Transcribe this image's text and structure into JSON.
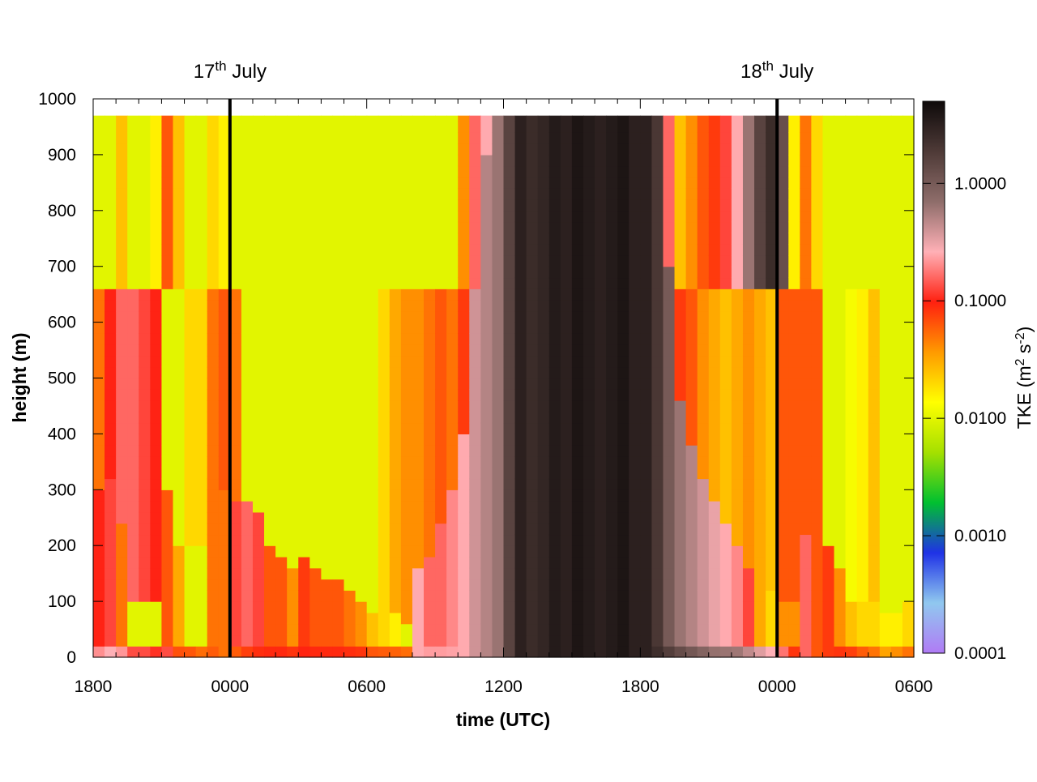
{
  "chart_data": {
    "type": "heatmap",
    "title": "",
    "xlabel": "time (UTC)",
    "ylabel": "height (m)",
    "colorbar_label": "TKE (m² s⁻²)",
    "colorbar_label_parts": {
      "base": "TKE (m",
      "exp1": "2",
      "mid": " s",
      "exp2": "-2",
      "end": ")"
    },
    "x_ticks": [
      "1800",
      "0000",
      "0600",
      "1200",
      "1800",
      "0000",
      "0600"
    ],
    "x_range_hours_from_start": [
      0,
      36
    ],
    "y_ticks": [
      0,
      100,
      200,
      300,
      400,
      500,
      600,
      700,
      800,
      900,
      1000
    ],
    "ylim": [
      0,
      1000
    ],
    "data_top_height": 970,
    "colorbar_scale": "log",
    "colorbar_range": [
      0.0001,
      5.0
    ],
    "colorbar_ticks": [
      "1.0000",
      "0.1000",
      "0.0100",
      "0.0010",
      "0.0001"
    ],
    "colormap": [
      "#b07bf5",
      "#90c8ef",
      "#1f32e6",
      "#00c030",
      "#a5e000",
      "#ffff00",
      "#ff9a00",
      "#ff2010",
      "#ffb0b6",
      "#8e6d6a",
      "#4e3a37",
      "#0e0a0a"
    ],
    "date_markers": [
      {
        "hour": 6,
        "day": "17",
        "suffix": "th",
        "month": " July"
      },
      {
        "hour": 30,
        "day": "18",
        "suffix": "th",
        "month": " July"
      }
    ],
    "grid": false,
    "column_hours": [
      "18:00",
      "18:30",
      "19:00",
      "19:30",
      "20:00",
      "20:30",
      "21:00",
      "21:30",
      "22:00",
      "22:30",
      "23:00",
      "23:30",
      "00:00",
      "00:30",
      "01:00",
      "01:30",
      "02:00",
      "02:30",
      "03:00",
      "03:30",
      "04:00",
      "04:30",
      "05:00",
      "05:30",
      "06:00",
      "06:30",
      "07:00",
      "07:30",
      "08:00",
      "08:30",
      "09:00",
      "09:30",
      "10:00",
      "10:30",
      "11:00",
      "11:30",
      "12:00",
      "12:30",
      "13:00",
      "13:30",
      "14:00",
      "14:30",
      "15:00",
      "15:30",
      "16:00",
      "16:30",
      "17:00",
      "17:30",
      "18:00",
      "18:30",
      "19:00",
      "19:30",
      "20:00",
      "20:30",
      "21:00",
      "21:30",
      "22:00",
      "22:30",
      "23:00",
      "23:30",
      "00:00",
      "00:30",
      "01:00",
      "01:30",
      "02:00",
      "02:30",
      "03:00",
      "03:30",
      "04:00",
      "04:30",
      "05:00",
      "05:30"
    ],
    "column_profiles_log10_TKE": [
      {
        "surf": -0.6,
        "low": -1.0,
        "low_top": 300,
        "mid": -1.3,
        "up": -2.0
      },
      {
        "surf": -0.5,
        "low": -0.9,
        "low_top": 320,
        "mid": -1.0,
        "up": -2.0
      },
      {
        "surf": -0.5,
        "low": -1.3,
        "low_top": 240,
        "mid": -0.8,
        "up": -1.6
      },
      {
        "surf": -0.6,
        "low": -2.0,
        "low_top": 100,
        "mid": -0.8,
        "up": -2.0
      },
      {
        "surf": -0.6,
        "low": -2.0,
        "low_top": 100,
        "mid": -0.9,
        "up": -2.0
      },
      {
        "surf": -0.7,
        "low": -2.0,
        "low_top": 90,
        "mid": -1.0,
        "up": -1.8
      },
      {
        "surf": -0.8,
        "low": -1.2,
        "low_top": 300,
        "mid": -2.0,
        "up": -1.2
      },
      {
        "surf": -1.1,
        "low": -1.5,
        "low_top": 200,
        "mid": -2.0,
        "up": -1.6
      },
      {
        "surf": -1.0,
        "low": -2.0,
        "low_top": 200,
        "mid": -1.7,
        "up": -2.0
      },
      {
        "surf": -1.1,
        "low": -2.0,
        "low_top": 200,
        "mid": -1.7,
        "up": -2.0
      },
      {
        "surf": -1.2,
        "low": -1.3,
        "low_top": 300,
        "mid": -1.3,
        "up": -1.7
      },
      {
        "surf": -1.3,
        "low": -1.3,
        "low_top": 300,
        "mid": -1.2,
        "up": -1.8
      },
      {
        "surf": -1.3,
        "low": -0.9,
        "low_top": 280,
        "mid": -1.3,
        "up": -2.0
      },
      {
        "surf": -1.2,
        "low": -0.8,
        "low_top": 280,
        "mid": -2.0,
        "up": -2.0
      },
      {
        "surf": -1.1,
        "low": -0.9,
        "low_top": 260,
        "mid": -2.0,
        "up": -2.0
      },
      {
        "surf": -1.0,
        "low": -1.2,
        "low_top": 200,
        "mid": -2.0,
        "up": -2.0
      },
      {
        "surf": -1.0,
        "low": -1.2,
        "low_top": 180,
        "mid": -2.0,
        "up": -2.0
      },
      {
        "surf": -1.0,
        "low": -1.4,
        "low_top": 160,
        "mid": -2.0,
        "up": -2.0
      },
      {
        "surf": -1.0,
        "low": -1.1,
        "low_top": 180,
        "mid": -2.0,
        "up": -2.0
      },
      {
        "surf": -1.0,
        "low": -1.2,
        "low_top": 160,
        "mid": -2.0,
        "up": -2.0
      },
      {
        "surf": -1.0,
        "low": -1.2,
        "low_top": 140,
        "mid": -2.0,
        "up": -2.0
      },
      {
        "surf": -1.0,
        "low": -1.2,
        "low_top": 130,
        "mid": -2.0,
        "up": -2.0
      },
      {
        "surf": -1.0,
        "low": -1.3,
        "low_top": 120,
        "mid": -2.0,
        "up": -2.0
      },
      {
        "surf": -1.0,
        "low": -1.4,
        "low_top": 100,
        "mid": -2.0,
        "up": -2.0
      },
      {
        "surf": -1.1,
        "low": -1.6,
        "low_top": 80,
        "mid": -2.0,
        "up": -2.0
      },
      {
        "surf": -1.1,
        "low": -1.7,
        "low_top": 80,
        "mid": -1.7,
        "up": -2.0
      },
      {
        "surf": -1.1,
        "low": -1.8,
        "low_top": 80,
        "mid": -1.5,
        "up": -2.0
      },
      {
        "surf": -1.1,
        "low": -2.0,
        "low_top": 60,
        "mid": -1.4,
        "up": -2.0
      },
      {
        "surf": -0.6,
        "low": -0.6,
        "low_top": 150,
        "mid": -1.4,
        "up": -2.0
      },
      {
        "surf": -0.6,
        "low": -0.8,
        "low_top": 170,
        "mid": -1.3,
        "up": -2.0
      },
      {
        "surf": -0.6,
        "low": -0.8,
        "low_top": 240,
        "mid": -1.2,
        "up": -2.0
      },
      {
        "surf": -0.6,
        "low": -0.7,
        "low_top": 300,
        "mid": -1.3,
        "up": -2.0
      },
      {
        "surf": -0.6,
        "low": -0.6,
        "low_top": 400,
        "mid": -1.1,
        "up": -1.4
      },
      {
        "surf": -0.4,
        "low": -0.4,
        "low_top": 600,
        "mid": -0.4,
        "up": -0.8
      },
      {
        "surf": -0.3,
        "low": -0.3,
        "low_top": 900,
        "mid": -0.3,
        "up": -0.6
      },
      {
        "surf": -0.2,
        "low": -0.2,
        "low_top": 990,
        "mid": -0.2,
        "up": -0.2
      },
      {
        "surf": 0.2,
        "low": 0.2,
        "low_top": 990,
        "mid": 0.2,
        "up": 0.2
      },
      {
        "surf": 0.5,
        "low": 0.5,
        "low_top": 990,
        "mid": 0.5,
        "up": 0.5
      },
      {
        "surf": 0.4,
        "low": 0.4,
        "low_top": 990,
        "mid": 0.4,
        "up": 0.4
      },
      {
        "surf": 0.45,
        "low": 0.45,
        "low_top": 990,
        "mid": 0.45,
        "up": 0.45
      },
      {
        "surf": 0.55,
        "low": 0.55,
        "low_top": 990,
        "mid": 0.55,
        "up": 0.55
      },
      {
        "surf": 0.5,
        "low": 0.5,
        "low_top": 990,
        "mid": 0.5,
        "up": 0.5
      },
      {
        "surf": 0.6,
        "low": 0.6,
        "low_top": 990,
        "mid": 0.6,
        "up": 0.6
      },
      {
        "surf": 0.55,
        "low": 0.55,
        "low_top": 990,
        "mid": 0.55,
        "up": 0.55
      },
      {
        "surf": 0.5,
        "low": 0.5,
        "low_top": 990,
        "mid": 0.5,
        "up": 0.5
      },
      {
        "surf": 0.55,
        "low": 0.55,
        "low_top": 990,
        "mid": 0.55,
        "up": 0.55
      },
      {
        "surf": 0.6,
        "low": 0.6,
        "low_top": 990,
        "mid": 0.6,
        "up": 0.6
      },
      {
        "surf": 0.5,
        "low": 0.5,
        "low_top": 990,
        "mid": 0.5,
        "up": 0.5
      },
      {
        "surf": 0.5,
        "low": 0.5,
        "low_top": 990,
        "mid": 0.5,
        "up": 0.5
      },
      {
        "surf": 0.4,
        "low": 0.3,
        "low_top": 990,
        "mid": -0.2,
        "up": -0.5
      },
      {
        "surf": 0.3,
        "low": 0.0,
        "low_top": 700,
        "mid": -0.4,
        "up": -0.8
      },
      {
        "surf": 0.2,
        "low": -0.2,
        "low_top": 450,
        "mid": -1.1,
        "up": -1.6
      },
      {
        "surf": 0.1,
        "low": -0.3,
        "low_top": 380,
        "mid": -1.2,
        "up": -1.4
      },
      {
        "surf": 0.0,
        "low": -0.4,
        "low_top": 320,
        "mid": -1.4,
        "up": -1.2
      },
      {
        "surf": -0.1,
        "low": -0.5,
        "low_top": 270,
        "mid": -1.5,
        "up": -1.1
      },
      {
        "surf": -0.1,
        "low": -0.6,
        "low_top": 230,
        "mid": -1.6,
        "up": -0.9
      },
      {
        "surf": -0.1,
        "low": -0.7,
        "low_top": 200,
        "mid": -1.5,
        "up": -0.6
      },
      {
        "surf": -0.2,
        "low": -0.9,
        "low_top": 160,
        "mid": -1.4,
        "up": -0.2
      },
      {
        "surf": -0.2,
        "low": -1.5,
        "low_top": 130,
        "mid": -1.5,
        "up": 0.2
      },
      {
        "surf": -0.3,
        "low": -1.7,
        "low_top": 110,
        "mid": -1.6,
        "up": 0.4
      },
      {
        "surf": -0.6,
        "low": -1.4,
        "low_top": 100,
        "mid": -1.2,
        "up": 0.1
      },
      {
        "surf": -1.0,
        "low": -1.4,
        "low_top": 90,
        "mid": -1.2,
        "up": -1.8
      },
      {
        "surf": -0.8,
        "low": -0.8,
        "low_top": 220,
        "mid": -1.2,
        "up": -1.3
      },
      {
        "surf": -1.2,
        "low": -1.2,
        "low_top": 180,
        "mid": -1.2,
        "up": -1.7
      },
      {
        "surf": -1.1,
        "low": -1.1,
        "low_top": 190,
        "mid": -2.0,
        "up": -2.0
      },
      {
        "surf": -1.0,
        "low": -1.4,
        "low_top": 150,
        "mid": -2.0,
        "up": -2.0
      },
      {
        "surf": -1.0,
        "low": -1.6,
        "low_top": 100,
        "mid": -1.9,
        "up": -2.0
      },
      {
        "surf": -1.1,
        "low": -1.7,
        "low_top": 100,
        "mid": -1.8,
        "up": -2.0
      },
      {
        "surf": -1.2,
        "low": -1.7,
        "low_top": 90,
        "mid": -1.6,
        "up": -2.0
      },
      {
        "surf": -1.4,
        "low": -1.8,
        "low_top": 80,
        "mid": -2.0,
        "up": -2.0
      },
      {
        "surf": -1.3,
        "low": -1.8,
        "low_top": 80,
        "mid": -2.0,
        "up": -2.0
      },
      {
        "surf": -1.2,
        "low": -1.7,
        "low_top": 100,
        "mid": -2.0,
        "up": -2.0
      }
    ]
  }
}
